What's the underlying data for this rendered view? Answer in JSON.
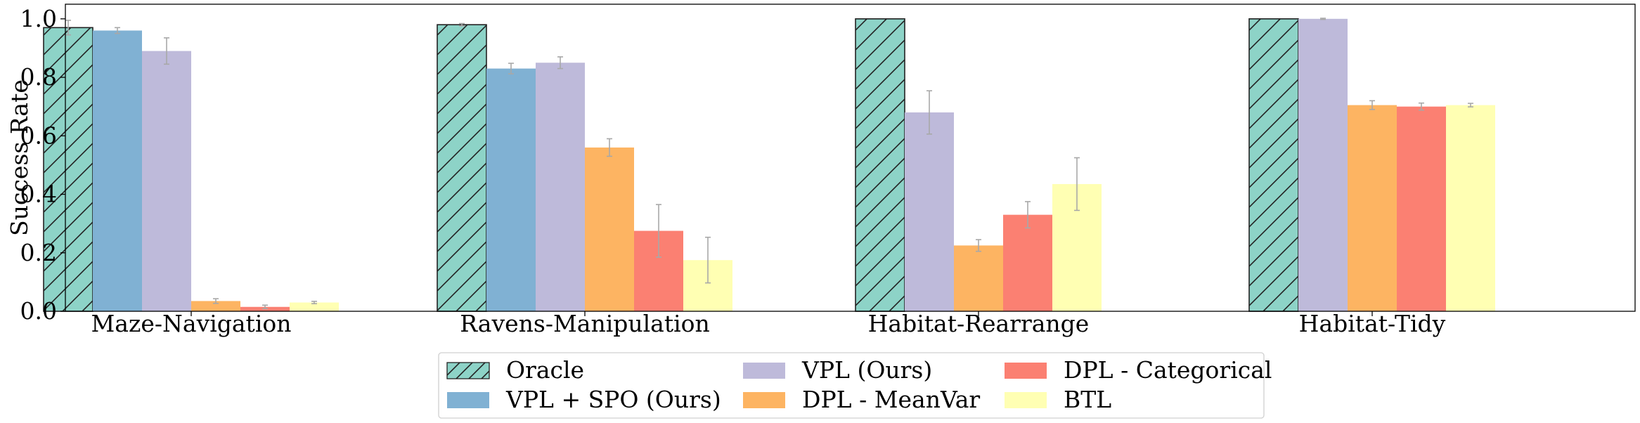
{
  "chart_data": {
    "type": "bar",
    "title": "",
    "xlabel": "",
    "ylabel": "Success Rate",
    "ylim": [
      0,
      1.05
    ],
    "yticks": [
      "0.0",
      "0.2",
      "0.4",
      "0.6",
      "0.8",
      "1.0"
    ],
    "groups": [
      {
        "name": "Maze-Navigation",
        "bars": [
          {
            "series": "Oracle",
            "value": 0.97,
            "err": 0.025
          },
          {
            "series": "VPL + SPO (Ours)",
            "value": 0.96,
            "err": 0.01
          },
          {
            "series": "VPL (Ours)",
            "value": 0.89,
            "err": 0.045
          },
          {
            "series": "DPL - MeanVar",
            "value": 0.035,
            "err": 0.008
          },
          {
            "series": "DPL - Categorical",
            "value": 0.015,
            "err": 0.006
          },
          {
            "series": "BTL",
            "value": 0.03,
            "err": 0.004
          }
        ]
      },
      {
        "name": "Ravens-Manipulation",
        "bars": [
          {
            "series": "Oracle",
            "value": 0.98,
            "err": 0.004
          },
          {
            "series": "VPL + SPO (Ours)",
            "value": 0.83,
            "err": 0.018
          },
          {
            "series": "VPL (Ours)",
            "value": 0.85,
            "err": 0.02
          },
          {
            "series": "DPL - MeanVar",
            "value": 0.56,
            "err": 0.03
          },
          {
            "series": "DPL - Categorical",
            "value": 0.275,
            "err": 0.09
          },
          {
            "series": "BTL",
            "value": 0.175,
            "err": 0.078
          }
        ]
      },
      {
        "name": "Habitat-Rearrange",
        "bars": [
          {
            "series": "Oracle",
            "value": 1.0,
            "err": 0
          },
          {
            "series": "VPL (Ours)",
            "value": 0.68,
            "err": 0.074
          },
          {
            "series": "DPL - MeanVar",
            "value": 0.225,
            "err": 0.02
          },
          {
            "series": "DPL - Categorical",
            "value": 0.33,
            "err": 0.045
          },
          {
            "series": "BTL",
            "value": 0.435,
            "err": 0.09
          }
        ]
      },
      {
        "name": "Habitat-Tidy",
        "bars": [
          {
            "series": "Oracle",
            "value": 1.0,
            "err": 0
          },
          {
            "series": "VPL (Ours)",
            "value": 1.0,
            "err": 0.002
          },
          {
            "series": "DPL - MeanVar",
            "value": 0.705,
            "err": 0.015
          },
          {
            "series": "DPL - Categorical",
            "value": 0.7,
            "err": 0.012
          },
          {
            "series": "BTL",
            "value": 0.705,
            "err": 0.006
          }
        ]
      }
    ],
    "legend": [
      {
        "name": "Oracle",
        "color": "#8DD3C7",
        "hatch": true
      },
      {
        "name": "VPL + SPO (Ours)",
        "color": "#80B1D3",
        "hatch": false
      },
      {
        "name": "VPL (Ours)",
        "color": "#BEBADA",
        "hatch": false
      },
      {
        "name": "DPL - MeanVar",
        "color": "#FDB462",
        "hatch": false
      },
      {
        "name": "DPL - Categorical",
        "color": "#FB8072",
        "hatch": false
      },
      {
        "name": "BTL",
        "color": "#FFFFB3",
        "hatch": false
      }
    ],
    "legend_position": "bottom-center"
  }
}
